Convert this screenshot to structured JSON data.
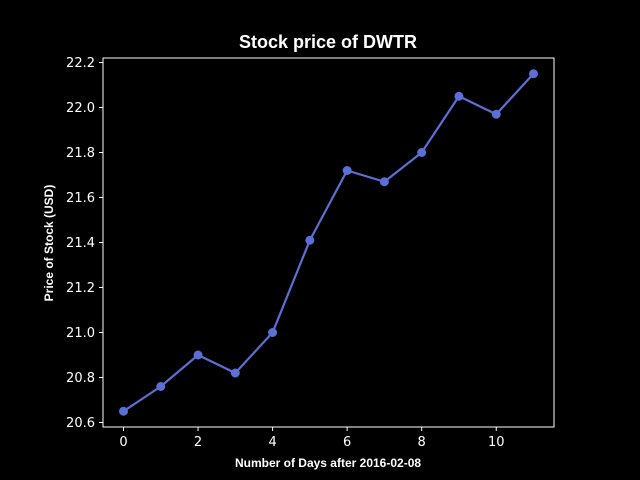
{
  "chart_data": {
    "type": "line",
    "title": "Stock price of DWTR",
    "xlabel": "Number of Days after 2016-02-08",
    "ylabel": "Price of Stock (USD)",
    "x": [
      0,
      1,
      2,
      3,
      4,
      5,
      6,
      7,
      8,
      9,
      10,
      11
    ],
    "series": [
      {
        "values": [
          20.65,
          20.76,
          20.9,
          20.82,
          21.0,
          21.41,
          21.72,
          21.67,
          21.8,
          22.05,
          21.97,
          22.15
        ],
        "color": "#5b6fd6"
      }
    ],
    "xticks": [
      "0",
      "2",
      "4",
      "6",
      "8",
      "10"
    ],
    "yticks": [
      "20.6",
      "20.8",
      "21.0",
      "21.2",
      "21.4",
      "21.6",
      "21.8",
      "22.0",
      "22.2"
    ],
    "xlim": [
      -0.55,
      11.55
    ],
    "ylim": [
      20.58,
      22.22
    ],
    "grid": false,
    "background": "#000000",
    "axis_color": "#ffffff"
  }
}
